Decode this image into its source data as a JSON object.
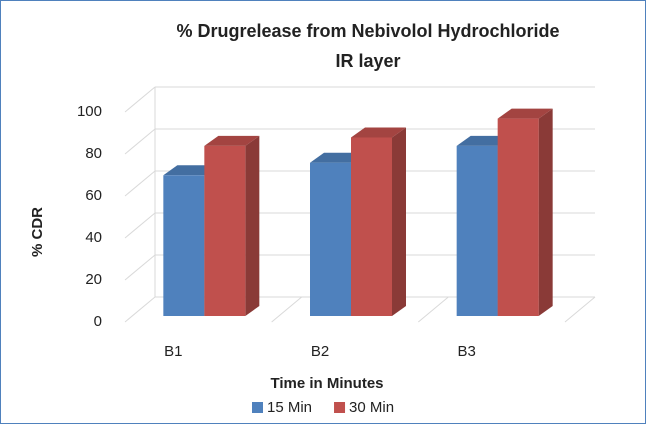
{
  "chart_data": {
    "type": "bar3d",
    "title": [
      "% Drugrelease from Nebivolol Hydrochloride",
      "IR layer"
    ],
    "x_label": "Time in Minutes",
    "y_label": "% CDR",
    "categories": [
      "B1",
      "B2",
      "B3"
    ],
    "series": [
      {
        "name": "15 Min",
        "color": "#4f81bd",
        "values": [
          67,
          73,
          81
        ]
      },
      {
        "name": "30 Min",
        "color": "#c0504d",
        "values": [
          81,
          85,
          94
        ]
      }
    ],
    "ylim": [
      0,
      100
    ],
    "yticks": [
      0,
      20,
      40,
      60,
      80,
      100
    ],
    "grid": true,
    "legend": "bottom"
  }
}
